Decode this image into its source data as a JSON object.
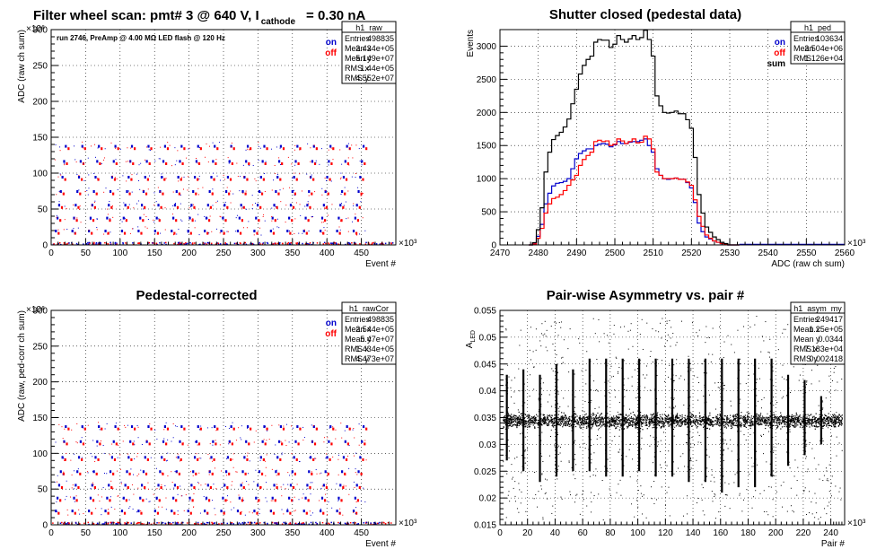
{
  "canvas": {
    "background": "#ffffff"
  },
  "chart_data": [
    {
      "id": "h1_raw",
      "type": "scatter",
      "title_main": "Filter wheel scan: pmt#   3 @   640 V, I",
      "title_sub": "cathode",
      "title_tail": "= 0.30 nA",
      "note": "run 2746, PreAmp @ 4.00 MΩ   LED flash @  120 Hz",
      "xlabel": "Event #",
      "ylabel": "ADC (raw ch sum)",
      "x_exponent": "×10³",
      "y_exponent": "×10⁶",
      "xlim": [
        0,
        500
      ],
      "ylim": [
        0,
        300
      ],
      "x_ticks": [
        0,
        50,
        100,
        150,
        200,
        250,
        300,
        350,
        400,
        450
      ],
      "y_ticks": [
        0,
        50,
        100,
        150,
        200,
        250,
        300
      ],
      "grid": true,
      "legend": [
        {
          "label": "on",
          "color": "#0000cc"
        },
        {
          "label": "off",
          "color": "#ff0000"
        }
      ],
      "stats": {
        "name": "h1_raw",
        "rows": [
          [
            "Entries",
            "498835"
          ],
          [
            "Mean x",
            "2.434e+05"
          ],
          [
            "Mean y",
            "5.149e+07"
          ],
          [
            "RMS x",
            "1.44e+05"
          ],
          [
            "RMS y",
            "4.552e+07"
          ]
        ]
      },
      "levels": [
        0,
        20,
        38,
        56,
        75,
        95,
        117,
        138
      ],
      "cycle_x": [
        3,
        27,
        51,
        75,
        99,
        123,
        147,
        171,
        195,
        219,
        243,
        267,
        291,
        315,
        339,
        363,
        387,
        411,
        435
      ],
      "series": [
        {
          "name": "on",
          "color": "#0000cc"
        },
        {
          "name": "off",
          "color": "#ff0000"
        }
      ]
    },
    {
      "id": "h1_ped",
      "type": "line",
      "title": "Shutter closed (pedestal data)",
      "xlabel": "ADC (raw ch sum)",
      "ylabel": "Events",
      "x_exponent": "×10³",
      "xlim": [
        2470,
        2560
      ],
      "ylim": [
        0,
        3250
      ],
      "x_ticks": [
        2470,
        2480,
        2490,
        2500,
        2510,
        2520,
        2530,
        2540,
        2550,
        2560
      ],
      "y_ticks": [
        0,
        500,
        1000,
        1500,
        2000,
        2500,
        3000
      ],
      "grid": true,
      "legend": [
        {
          "label": "on",
          "color": "#0000cc"
        },
        {
          "label": "off",
          "color": "#ff0000"
        },
        {
          "label": "sum",
          "color": "#000000"
        }
      ],
      "stats": {
        "name": "h1_ped",
        "rows": [
          [
            "Entries",
            "103634"
          ],
          [
            "Mean",
            "2.504e+06"
          ],
          [
            "RMS",
            "1.126e+04"
          ]
        ]
      },
      "x": [
        2478,
        2479,
        2480,
        2481,
        2482,
        2483,
        2484,
        2485,
        2486,
        2487,
        2488,
        2489,
        2490,
        2491,
        2492,
        2493,
        2494,
        2495,
        2496,
        2497,
        2498,
        2499,
        2500,
        2501,
        2502,
        2503,
        2504,
        2505,
        2506,
        2507,
        2508,
        2509,
        2510,
        2511,
        2512,
        2513,
        2514,
        2515,
        2516,
        2517,
        2518,
        2519,
        2520,
        2521,
        2522,
        2523,
        2524,
        2525,
        2526,
        2527,
        2528,
        2529,
        2530,
        2531,
        2532
      ],
      "series": [
        {
          "name": "on",
          "color": "#0000cc",
          "values": [
            0,
            20,
            130,
            310,
            620,
            780,
            890,
            930,
            940,
            960,
            1000,
            1150,
            1300,
            1380,
            1420,
            1450,
            1450,
            1500,
            1520,
            1530,
            1520,
            1480,
            1510,
            1560,
            1530,
            1530,
            1550,
            1560,
            1560,
            1580,
            1600,
            1500,
            1400,
            1150,
            1050,
            1000,
            990,
            1000,
            1010,
            990,
            990,
            940,
            860,
            640,
            330,
            200,
            120,
            90,
            60,
            40,
            20,
            10,
            0,
            0,
            0
          ]
        },
        {
          "name": "off",
          "color": "#ff0000",
          "values": [
            0,
            15,
            100,
            250,
            480,
            620,
            700,
            720,
            760,
            820,
            900,
            980,
            1050,
            1200,
            1290,
            1350,
            1400,
            1560,
            1580,
            1560,
            1570,
            1500,
            1520,
            1600,
            1570,
            1530,
            1560,
            1600,
            1540,
            1550,
            1640,
            1600,
            1450,
            1100,
            1050,
            1000,
            1000,
            1000,
            1010,
            990,
            990,
            950,
            900,
            680,
            430,
            280,
            150,
            100,
            60,
            40,
            20,
            10,
            0,
            0,
            0
          ]
        },
        {
          "name": "sum",
          "color": "#000000",
          "values": [
            0,
            35,
            230,
            560,
            1100,
            1400,
            1590,
            1650,
            1700,
            1780,
            1900,
            2130,
            2350,
            2580,
            2710,
            2800,
            2850,
            3060,
            3100,
            3090,
            3090,
            2980,
            3030,
            3160,
            3100,
            3060,
            3110,
            3160,
            3100,
            3130,
            3240,
            3100,
            2850,
            2250,
            2100,
            2000,
            1990,
            2000,
            2020,
            1980,
            1980,
            1890,
            1760,
            1320,
            760,
            480,
            270,
            190,
            120,
            80,
            40,
            20,
            0,
            0,
            0
          ]
        }
      ]
    },
    {
      "id": "h1_rawCor",
      "type": "scatter",
      "title": "Pedestal-corrected",
      "xlabel": "Event #",
      "ylabel": "ADC (raw, ped-corr ch sum)",
      "x_exponent": "×10³",
      "y_exponent": "×10⁶",
      "xlim": [
        0,
        500
      ],
      "ylim": [
        0,
        300
      ],
      "x_ticks": [
        0,
        50,
        100,
        150,
        200,
        250,
        300,
        350,
        400,
        450
      ],
      "y_ticks": [
        0,
        50,
        100,
        150,
        200,
        250,
        300
      ],
      "grid": true,
      "legend": [
        {
          "label": "on",
          "color": "#0000cc"
        },
        {
          "label": "off",
          "color": "#ff0000"
        }
      ],
      "stats": {
        "name": "h1_rawCor",
        "rows": [
          [
            "Entries",
            "498835"
          ],
          [
            "Mean x",
            "2.544e+05"
          ],
          [
            "Mean y",
            "5.47e+07"
          ],
          [
            "RMS x",
            "1.434e+05"
          ],
          [
            "RMS y",
            "4.473e+07"
          ]
        ]
      },
      "levels": [
        0,
        20,
        38,
        56,
        75,
        95,
        117,
        138
      ],
      "cycle_x": [
        3,
        27,
        51,
        75,
        99,
        123,
        147,
        171,
        195,
        219,
        243,
        267,
        291,
        315,
        339,
        363,
        387,
        411,
        435
      ],
      "series": [
        {
          "name": "on",
          "color": "#0000cc"
        },
        {
          "name": "off",
          "color": "#ff0000"
        }
      ]
    },
    {
      "id": "h1_asym_my",
      "type": "scatter",
      "title": "Pair-wise Asymmetry vs. pair #",
      "xlabel": "Pair #",
      "ylabel_main": "A",
      "ylabel_sub": "LED",
      "x_exponent": "×10³",
      "xlim": [
        0,
        250
      ],
      "ylim": [
        0.015,
        0.055
      ],
      "x_ticks": [
        0,
        20,
        40,
        60,
        80,
        100,
        120,
        140,
        160,
        180,
        200,
        220,
        240
      ],
      "y_ticks": [
        0.015,
        0.02,
        0.025,
        0.03,
        0.035,
        0.04,
        0.045,
        0.05,
        0.055
      ],
      "grid": true,
      "stats": {
        "name": "h1_asym_my",
        "rows": [
          [
            "Entries",
            "249417"
          ],
          [
            "Mean x",
            "1.25e+05"
          ],
          [
            "Mean y",
            "0.0344"
          ],
          [
            "RMS x",
            "7.183e+04"
          ],
          [
            "RMS y",
            "0.002418"
          ]
        ]
      },
      "band_center": 0.0345,
      "spike_x": [
        5,
        17,
        29,
        41,
        53,
        65,
        77,
        89,
        101,
        113,
        125,
        137,
        149,
        161,
        173,
        185,
        197,
        209,
        221,
        233
      ],
      "spike_top": [
        0.043,
        0.044,
        0.043,
        0.045,
        0.044,
        0.046,
        0.046,
        0.046,
        0.046,
        0.046,
        0.046,
        0.046,
        0.046,
        0.046,
        0.046,
        0.046,
        0.046,
        0.043,
        0.042,
        0.039
      ],
      "spike_bottom": [
        0.027,
        0.025,
        0.023,
        0.024,
        0.025,
        0.025,
        0.024,
        0.024,
        0.025,
        0.024,
        0.024,
        0.023,
        0.023,
        0.021,
        0.022,
        0.022,
        0.024,
        0.026,
        0.028,
        0.03
      ],
      "series": [
        {
          "name": "",
          "color": "#000000"
        }
      ]
    }
  ]
}
